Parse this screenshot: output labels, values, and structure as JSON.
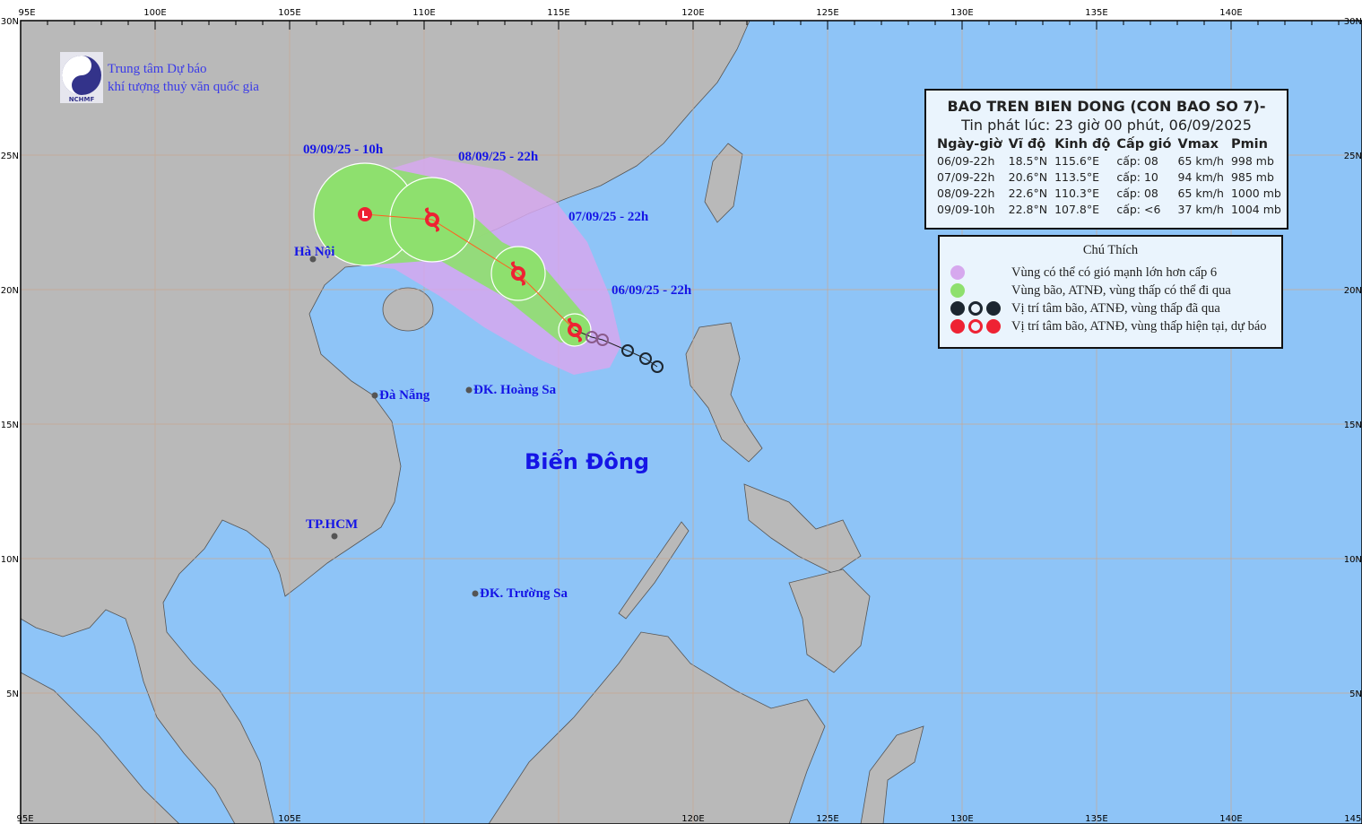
{
  "logo": {
    "text": "NCHMF",
    "line1": "Trung tâm Dự báo",
    "line2": "khí tượng thuỷ văn quốc gia"
  },
  "axes": {
    "top_lon": [
      "95E",
      "100E",
      "105E",
      "110E",
      "115E",
      "120E",
      "125E",
      "130E",
      "135E",
      "140E"
    ],
    "bottom_lon": [
      "95E",
      "105E",
      "120E",
      "125E",
      "130E",
      "135E",
      "140E",
      "145E"
    ],
    "left_lat": [
      "30N",
      "25N",
      "20N",
      "15N",
      "10N",
      "5N"
    ],
    "right_lat": [
      "30N",
      "25N",
      "20N",
      "15N",
      "10N",
      "5N"
    ]
  },
  "info": {
    "title": "BAO TREN BIEN DONG (CON BAO SO 7)-",
    "issued": "Tin phát lúc: 23 giờ 00 phút, 06/09/2025",
    "headers": [
      "Ngày-giờ",
      "Vĩ độ",
      "Kinh độ",
      "Cấp gió",
      "Vmax",
      "Pmin"
    ],
    "rows": [
      [
        "06/09-22h",
        "18.5°N",
        "115.6°E",
        "cấp: 08",
        "65 km/h",
        "998 mb"
      ],
      [
        "07/09-22h",
        "20.6°N",
        "113.5°E",
        "cấp: 10",
        "94 km/h",
        "985 mb"
      ],
      [
        "08/09-22h",
        "22.6°N",
        "110.3°E",
        "cấp: 08",
        "65 km/h",
        "1000 mb"
      ],
      [
        "09/09-10h",
        "22.8°N",
        "107.8°E",
        "cấp: <6",
        "37 km/h",
        "1004 mb"
      ]
    ]
  },
  "legend": {
    "title": "Chú Thích",
    "items": [
      {
        "icon": "purple-zone-icon",
        "text": "Vùng có thể có gió mạnh lớn hơn cấp 6"
      },
      {
        "icon": "green-zone-icon",
        "text": "Vùng bão, ATNĐ, vùng thấp có thể đi qua"
      },
      {
        "icon": "past-position-icons",
        "text": "Vị trí tâm bão, ATNĐ, vùng thấp đã qua"
      },
      {
        "icon": "forecast-position-icons",
        "text": "Vị trí tâm bão, ATNĐ, vùng thấp hiện tại, dự báo"
      }
    ]
  },
  "track_labels": [
    "09/09/25 - 10h",
    "08/09/25 - 22h",
    "07/09/25 - 22h",
    "06/09/25 - 22h"
  ],
  "places": [
    "Hà Nội",
    "Đà Nẵng",
    "ĐK. Hoàng Sa",
    "TP.HCM",
    "ĐK. Trường Sa"
  ],
  "sea_name": "Biển Đông",
  "colors": {
    "sea": "#8ec4f7",
    "land": "#b9b9b9",
    "purple_zone": "#d6a8ee",
    "green_zone": "#8ee06e",
    "forecast": "#ee2233",
    "past": "#1c2630",
    "label": "#1515e6"
  }
}
